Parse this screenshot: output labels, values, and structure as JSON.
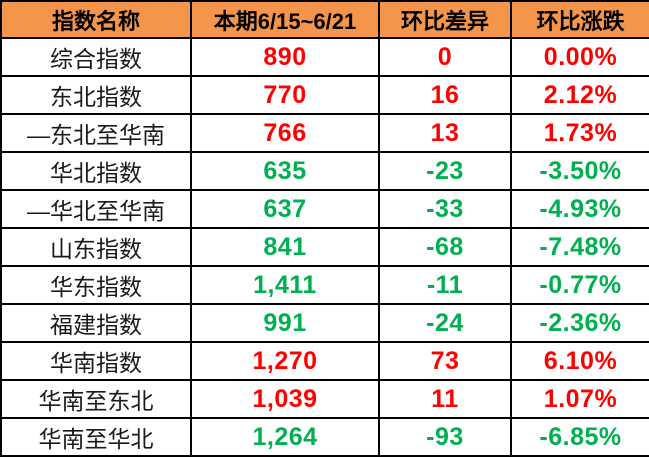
{
  "table": {
    "columns": [
      {
        "label": "指数名称"
      },
      {
        "label": "本期6/15~6/21"
      },
      {
        "label": "环比差异"
      },
      {
        "label": "环比涨跌"
      }
    ],
    "rows": [
      {
        "name": "综合指数",
        "current": "890",
        "diff": "0",
        "change": "0.00%",
        "trend": "up"
      },
      {
        "name": "东北指数",
        "current": "770",
        "diff": "16",
        "change": "2.12%",
        "trend": "up"
      },
      {
        "name": "—东北至华南",
        "current": "766",
        "diff": "13",
        "change": "1.73%",
        "trend": "up"
      },
      {
        "name": "华北指数",
        "current": "635",
        "diff": "-23",
        "change": "-3.50%",
        "trend": "down"
      },
      {
        "name": "—华北至华南",
        "current": "637",
        "diff": "-33",
        "change": "-4.93%",
        "trend": "down"
      },
      {
        "name": "山东指数",
        "current": "841",
        "diff": "-68",
        "change": "-7.48%",
        "trend": "down"
      },
      {
        "name": "华东指数",
        "current": "1,411",
        "diff": "-11",
        "change": "-0.77%",
        "trend": "down"
      },
      {
        "name": "福建指数",
        "current": "991",
        "diff": "-24",
        "change": "-2.36%",
        "trend": "down"
      },
      {
        "name": "华南指数",
        "current": "1,270",
        "diff": "73",
        "change": "6.10%",
        "trend": "up"
      },
      {
        "name": "华南至东北",
        "current": "1,039",
        "diff": "11",
        "change": "1.07%",
        "trend": "up"
      },
      {
        "name": "华南至华北",
        "current": "1,264",
        "diff": "-93",
        "change": "-6.85%",
        "trend": "down"
      }
    ],
    "colors": {
      "header_bg": "#F5954B",
      "up": "#FF0000",
      "down": "#00B050",
      "border": "#000000"
    }
  },
  "chart_data": {
    "type": "table",
    "title": "",
    "columns": [
      "指数名称",
      "本期6/15~6/21",
      "环比差异",
      "环比涨跌"
    ],
    "rows": [
      [
        "综合指数",
        890,
        0,
        "0.00%"
      ],
      [
        "东北指数",
        770,
        16,
        "2.12%"
      ],
      [
        "—东北至华南",
        766,
        13,
        "1.73%"
      ],
      [
        "华北指数",
        635,
        -23,
        "-3.50%"
      ],
      [
        "—华北至华南",
        637,
        -33,
        "-4.93%"
      ],
      [
        "山东指数",
        841,
        -68,
        "-7.48%"
      ],
      [
        "华东指数",
        1411,
        -11,
        "-0.77%"
      ],
      [
        "福建指数",
        991,
        -24,
        "-2.36%"
      ],
      [
        "华南指数",
        1270,
        73,
        "6.10%"
      ],
      [
        "华南至东北",
        1039,
        11,
        "1.07%"
      ],
      [
        "华南至华北",
        1264,
        -93,
        "-6.85%"
      ]
    ],
    "color_coding": {
      "positive_or_zero": "#FF0000",
      "negative": "#00B050"
    }
  }
}
